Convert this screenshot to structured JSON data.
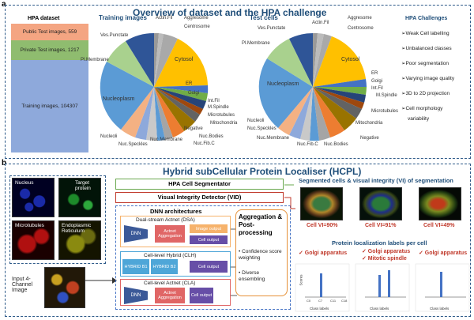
{
  "panel_a": {
    "letter": "a",
    "title": "Overview of dataset and the HPA challenge",
    "dataset": {
      "header": "HPA dataset",
      "rows": [
        {
          "label": "Public Test images, 559",
          "color": "#f4a582"
        },
        {
          "label": "Private Test images, 1217",
          "color": "#8fbc6f"
        },
        {
          "label": "Training images, 104307",
          "color": "#8ea9db"
        }
      ]
    },
    "training_title": "Training images",
    "test_title": "Test cells",
    "training_labels": [
      "Actin.Fil",
      "Aggresome",
      "Centrosome",
      "Ves.Punctate",
      "Pl.Membrane",
      "Cytosol",
      "ER",
      "Golgi",
      "Int.Fil",
      "M.Spindle",
      "Microtubules",
      "Mitochondria",
      "Negative",
      "Nuc.Bodies",
      "Nuc.Fib.C",
      "Nuc.Membrane",
      "Nuc.Speckles",
      "Nucleoli",
      "Nucleoplasm"
    ],
    "test_labels": [
      "Actin.Fil",
      "Aggresome",
      "Centrosome",
      "Ves.Punctate",
      "Pl.Membrane",
      "Cytosol",
      "ER",
      "Golgi",
      "Int.Fil",
      "M.Spindle",
      "Microtubules",
      "Mitochondria",
      "Negative",
      "Nuc.Bodies",
      "Nuc.Fib.C",
      "Nuc.Membrane",
      "Nuc.Speckles",
      "Nucleoli",
      "Nucleoplasm"
    ],
    "challenges": {
      "header": "HPA Challenges",
      "items": [
        "➢Weak Cell labelling",
        "➢Unbalanced classes",
        "➢Poor segmentation",
        "➢Varying image quality",
        "➢3D to 2D projection",
        "➢Cell morphology",
        "variability"
      ]
    }
  },
  "panel_b": {
    "letter": "b",
    "title": "Hybrid subCellular Protein Localiser (HCPL)",
    "micrographs": [
      {
        "label": "Nucleus",
        "color": "#000044"
      },
      {
        "label": "Target protein",
        "color": "#013d10"
      },
      {
        "label": "Microtubules",
        "color": "#3d0000"
      },
      {
        "label": "Endoplasmic Reticulum",
        "color": "#3a3a00"
      }
    ],
    "input_label": "Input 4-Channel Image",
    "segmentor": "HPA Cell Segmentator",
    "vid": "Visual Integrity Detector (VID)",
    "dnn_header": "DNN architectures",
    "dsa_title": "Dual-stream Actnet (DSA)",
    "clh_title": "Cell-level Hybrid (CLH)",
    "cla_title": "Cell-level Actnet (CLA)",
    "dnn": "DNN",
    "actnet_aggr": "Actnet Aggregation",
    "image_output": "Image output",
    "cell_output": "Cell output",
    "hybrid_b1": "HYBRID B1",
    "hybrid_b2": "HYBRID B2",
    "aggregation_title": "Aggregation & Post-processing",
    "aggregation_items": [
      "• Confidence score weighting",
      "• Diverse ensembling"
    ],
    "seg_title": "Segmented cells & visual integrity (VI) of segmentation",
    "cell_vi": [
      "Cell VI=90%",
      "Cell VI=91%",
      "Cell VI=49%"
    ],
    "loc_title": "Protein localization labels per cell",
    "labels_cells": [
      {
        "lines": [
          "✓ Golgi apparatus"
        ]
      },
      {
        "lines": [
          "✓ Golgi apparatus",
          "✓ Mitotic spindle"
        ]
      },
      {
        "lines": [
          "✓ Golgi apparatus"
        ]
      }
    ],
    "mini_axis": {
      "ylabel": "Scores",
      "xlabel": "Class labels",
      "ticks": [
        "C0",
        "C7",
        "C11",
        "C18"
      ]
    }
  },
  "colors": {
    "title_blue": "#1f4e79",
    "red": "#c0392b",
    "green_border": "#6aa84f"
  }
}
